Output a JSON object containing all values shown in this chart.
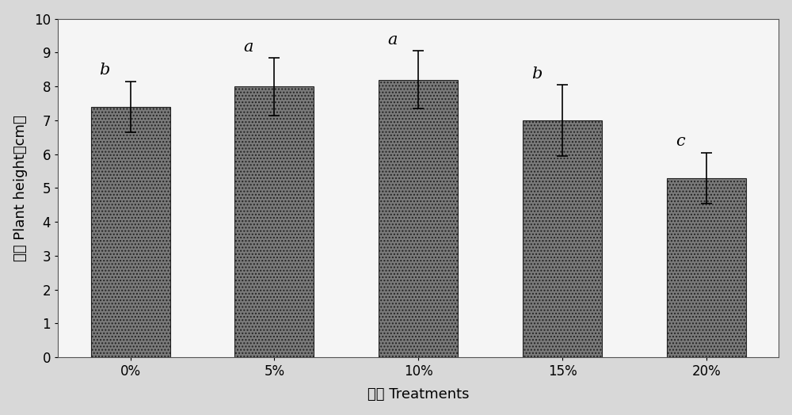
{
  "categories": [
    "0%",
    "5%",
    "10%",
    "15%",
    "20%"
  ],
  "values": [
    7.4,
    8.0,
    8.2,
    7.0,
    5.3
  ],
  "errors": [
    0.75,
    0.85,
    0.85,
    1.05,
    0.75
  ],
  "sig_labels": [
    "b",
    "a",
    "a",
    "b",
    "c"
  ],
  "bar_color": "#7a7a7a",
  "bar_edgecolor": "#222222",
  "figure_facecolor": "#d8d8d8",
  "axes_facecolor": "#f5f5f5",
  "ylabel_chinese": "株高 Plant height（cm）",
  "xlabel": "处理 Treatments",
  "ylim": [
    0,
    10
  ],
  "yticks": [
    0,
    1,
    2,
    3,
    4,
    5,
    6,
    7,
    8,
    9,
    10
  ],
  "bar_width": 0.55,
  "sig_fontsize": 15,
  "axis_fontsize": 13,
  "tick_fontsize": 12
}
